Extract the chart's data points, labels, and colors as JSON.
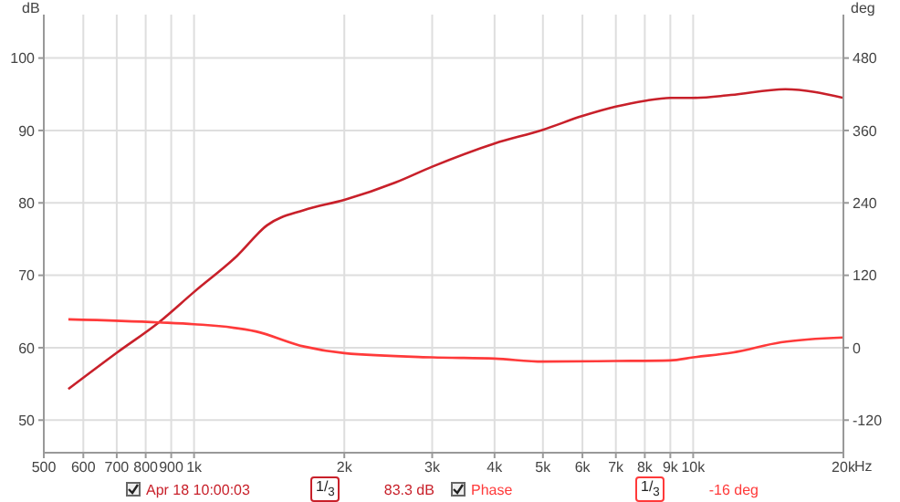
{
  "chart_data": {
    "type": "line",
    "xlabel": "Hz",
    "ylabel": "dB",
    "y2label": "deg",
    "log": "x",
    "xlim": [
      500,
      20000
    ],
    "xticks": [
      500,
      600,
      700,
      800,
      900,
      {
        "value": 1000,
        "label": "1k"
      },
      {
        "value": 2000,
        "label": "2k"
      },
      {
        "value": 3000,
        "label": "3k"
      },
      {
        "value": 4000,
        "label": "4k"
      },
      {
        "value": 5000,
        "label": "5k"
      },
      {
        "value": 6000,
        "label": "6k"
      },
      {
        "value": 7000,
        "label": "7k"
      },
      {
        "value": 8000,
        "label": "8k"
      },
      {
        "value": 9000,
        "label": "9k"
      },
      {
        "value": 10000,
        "label": "10k"
      },
      {
        "value": 20000,
        "label": "20k"
      }
    ],
    "ylim": [
      45.5,
      106
    ],
    "yticks": [
      50,
      60,
      70,
      80,
      90,
      100
    ],
    "y2lim": [
      -174,
      552
    ],
    "y2ticks": [
      -120,
      0,
      120,
      240,
      360,
      480
    ],
    "grid": true,
    "legend": "bottom",
    "marker": "none",
    "line_style": "solid",
    "series": [
      {
        "name": "Apr 18 10:00:03",
        "color": "#c8202a",
        "x": [
          560,
          700,
          850,
          1000,
          1220,
          1400,
          1660,
          2000,
          2530,
          3000,
          4000,
          5000,
          6000,
          7000,
          8000,
          9000,
          10000,
          11900,
          15300,
          20000
        ],
        "values": [
          54.3,
          59.3,
          63.5,
          67.7,
          72.7,
          76.9,
          79,
          80.4,
          82.8,
          85,
          88.2,
          90.1,
          92,
          93.3,
          94.1,
          94.5,
          94.5,
          94.9,
          95.7,
          94.5
        ]
      },
      {
        "name": "Phase",
        "color": "#ff3a3a",
        "axis": "y2",
        "x": [
          560,
          850,
          1000,
          1330,
          1660,
          2000,
          3000,
          4000,
          5000,
          7000,
          9000,
          10000,
          12000,
          15000,
          20000
        ],
        "values": [
          47,
          42,
          39,
          27,
          2,
          -9,
          -16,
          -18,
          -23,
          -22,
          -21,
          -16,
          -8,
          9,
          17
        ]
      }
    ],
    "annotations": [
      "1/$_{3}$",
      "83.3 dB",
      "1/$_{3}$",
      "-16 deg"
    ]
  }
}
